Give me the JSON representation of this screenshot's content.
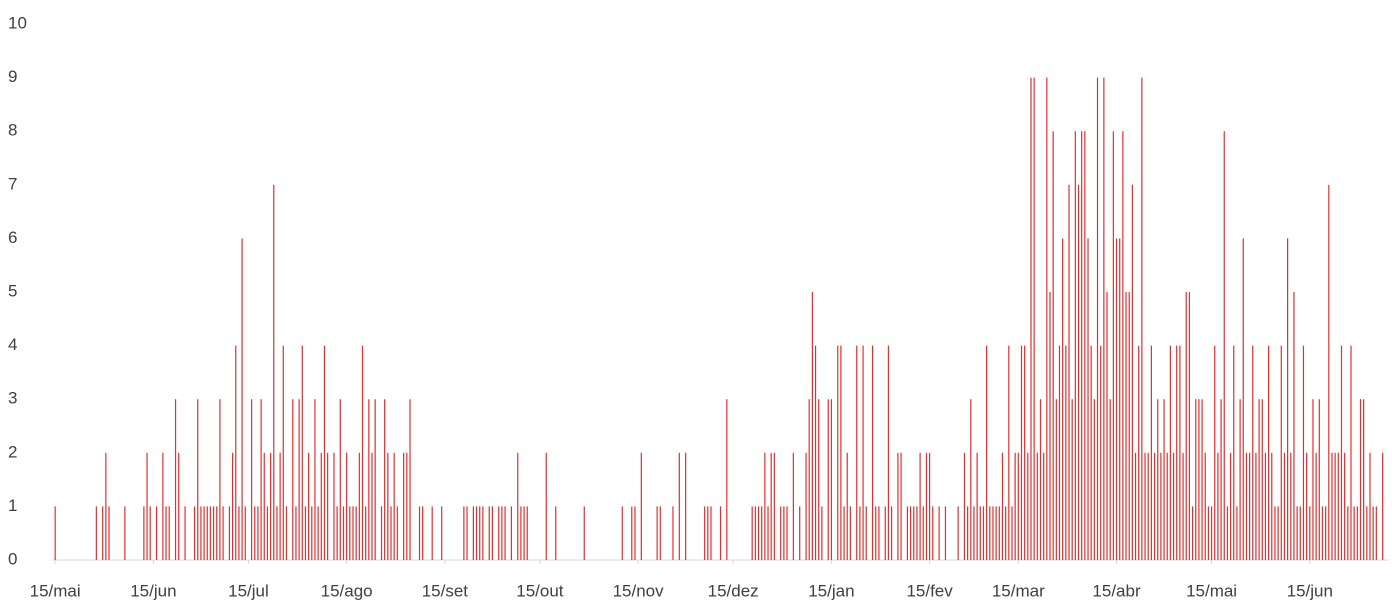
{
  "chart_data": {
    "type": "bar",
    "color": "#e03030",
    "xlim": [
      -1,
      421
    ],
    "ylim": [
      0,
      10
    ],
    "yticks": [
      0,
      1,
      2,
      3,
      4,
      5,
      6,
      7,
      8,
      9,
      10
    ],
    "xticks": [
      {
        "value": 0,
        "label": "15/mai"
      },
      {
        "value": 31,
        "label": "15/jun"
      },
      {
        "value": 61,
        "label": "15/jul"
      },
      {
        "value": 92,
        "label": "15/ago"
      },
      {
        "value": 123,
        "label": "15/set"
      },
      {
        "value": 153,
        "label": "15/out"
      },
      {
        "value": 184,
        "label": "15/nov"
      },
      {
        "value": 214,
        "label": "15/dez"
      },
      {
        "value": 245,
        "label": "15/jan"
      },
      {
        "value": 276,
        "label": "15/fev"
      },
      {
        "value": 304,
        "label": "15/mar"
      },
      {
        "value": 335,
        "label": "15/abr"
      },
      {
        "value": 365,
        "label": "15/mai"
      },
      {
        "value": 396,
        "label": "15/jun"
      }
    ],
    "x": [
      0,
      13,
      15,
      16,
      17,
      22,
      28,
      29,
      30,
      32,
      34,
      35,
      36,
      38,
      39,
      41,
      44,
      45,
      46,
      47,
      48,
      49,
      50,
      51,
      52,
      53,
      55,
      56,
      57,
      58,
      59,
      60,
      62,
      63,
      64,
      65,
      66,
      67,
      68,
      69,
      70,
      71,
      72,
      73,
      75,
      76,
      77,
      78,
      79,
      80,
      81,
      82,
      83,
      84,
      85,
      86,
      88,
      89,
      90,
      91,
      92,
      93,
      94,
      95,
      96,
      97,
      98,
      99,
      100,
      101,
      103,
      104,
      105,
      106,
      107,
      108,
      110,
      111,
      112,
      115,
      116,
      119,
      122,
      129,
      130,
      132,
      133,
      134,
      135,
      137,
      138,
      140,
      141,
      142,
      144,
      146,
      147,
      148,
      149,
      155,
      158,
      167,
      179,
      182,
      183,
      185,
      190,
      191,
      195,
      197,
      199,
      205,
      206,
      207,
      210,
      212,
      220,
      221,
      222,
      223,
      224,
      225,
      226,
      227,
      229,
      230,
      231,
      233,
      235,
      237,
      238,
      239,
      240,
      241,
      242,
      244,
      245,
      247,
      248,
      249,
      250,
      251,
      253,
      254,
      255,
      256,
      258,
      259,
      260,
      262,
      263,
      264,
      266,
      267,
      269,
      270,
      271,
      272,
      273,
      274,
      275,
      276,
      277,
      279,
      281,
      285,
      287,
      288,
      289,
      290,
      291,
      292,
      293,
      294,
      295,
      296,
      297,
      298,
      299,
      300,
      301,
      302,
      303,
      304,
      305,
      306,
      307,
      308,
      309,
      310,
      311,
      312,
      313,
      314,
      315,
      316,
      317,
      318,
      319,
      320,
      321,
      322,
      323,
      324,
      325,
      326,
      327,
      328,
      329,
      330,
      331,
      332,
      333,
      334,
      335,
      336,
      337,
      338,
      339,
      340,
      341,
      342,
      343,
      344,
      345,
      346,
      347,
      348,
      349,
      350,
      351,
      352,
      353,
      354,
      355,
      356,
      357,
      358,
      359,
      360,
      361,
      362,
      363,
      364,
      365,
      366,
      367,
      368,
      369,
      370,
      371,
      372,
      373,
      374,
      375,
      376,
      377,
      378,
      379,
      380,
      381,
      382,
      383,
      384,
      385,
      386,
      387,
      388,
      389,
      390,
      391,
      392,
      393,
      394,
      395,
      396,
      397,
      398,
      399,
      400,
      401,
      402,
      403,
      404,
      405,
      406,
      407,
      408,
      409,
      410,
      411,
      412,
      413,
      414,
      415,
      416,
      417,
      419
    ],
    "values": [
      1,
      1,
      1,
      2,
      1,
      1,
      1,
      2,
      1,
      1,
      2,
      1,
      1,
      3,
      2,
      1,
      1,
      3,
      1,
      1,
      1,
      1,
      1,
      1,
      3,
      1,
      1,
      2,
      4,
      1,
      6,
      1,
      3,
      1,
      1,
      3,
      2,
      1,
      2,
      7,
      1,
      2,
      4,
      1,
      3,
      1,
      3,
      4,
      1,
      2,
      1,
      3,
      1,
      2,
      4,
      2,
      2,
      1,
      3,
      1,
      2,
      1,
      1,
      1,
      2,
      4,
      1,
      3,
      2,
      3,
      1,
      3,
      2,
      1,
      2,
      1,
      2,
      2,
      3,
      1,
      1,
      1,
      1,
      1,
      1,
      1,
      1,
      1,
      1,
      1,
      1,
      1,
      1,
      1,
      1,
      2,
      1,
      1,
      1,
      2,
      1,
      1,
      1,
      1,
      1,
      2,
      1,
      1,
      1,
      2,
      2,
      1,
      1,
      1,
      1,
      3,
      1,
      1,
      1,
      1,
      2,
      1,
      2,
      2,
      1,
      1,
      1,
      2,
      1,
      2,
      3,
      5,
      4,
      3,
      1,
      3,
      3,
      4,
      4,
      1,
      2,
      1,
      4,
      1,
      4,
      1,
      4,
      1,
      1,
      1,
      4,
      1,
      2,
      2,
      1,
      1,
      1,
      1,
      2,
      1,
      2,
      2,
      1,
      1,
      1,
      1,
      2,
      1,
      3,
      1,
      2,
      1,
      1,
      4,
      1,
      1,
      1,
      1,
      2,
      1,
      4,
      1,
      2,
      2,
      4,
      4,
      2,
      9,
      9,
      2,
      3,
      2,
      9,
      5,
      8,
      3,
      4,
      6,
      4,
      7,
      3,
      8,
      7,
      8,
      8,
      6,
      4,
      3,
      9,
      4,
      9,
      5,
      3,
      8,
      6,
      6,
      8,
      5,
      5,
      7,
      2,
      4,
      9,
      2,
      2,
      4,
      2,
      3,
      2,
      3,
      2,
      4,
      2,
      4,
      4,
      2,
      5,
      5,
      1,
      3,
      3,
      3,
      2,
      1,
      1,
      4,
      2,
      3,
      8,
      1,
      2,
      4,
      1,
      3,
      6,
      2,
      2,
      4,
      2,
      3,
      3,
      2,
      4,
      2,
      1,
      1,
      4,
      2,
      6,
      2,
      5,
      1,
      1,
      4,
      2,
      1,
      3,
      2,
      3,
      1,
      1,
      7,
      2,
      2,
      2,
      4,
      2,
      1,
      4,
      1,
      1,
      3,
      3,
      1,
      2,
      1,
      1,
      2
    ]
  }
}
